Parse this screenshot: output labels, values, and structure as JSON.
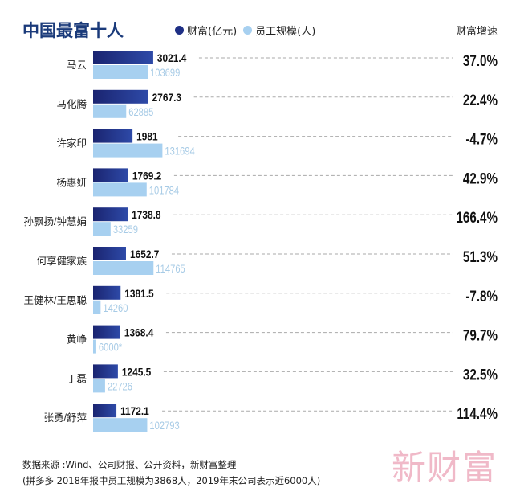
{
  "chart_data": {
    "type": "bar",
    "title": "中国最富十人",
    "legend": [
      {
        "name": "财富(亿元)",
        "color": "#1e2f85"
      },
      {
        "name": "员工规模(人)",
        "color": "#a7d0f0"
      }
    ],
    "right_header": "财富增速",
    "categories": [
      "马云",
      "马化腾",
      "许家印",
      "杨惠妍",
      "孙飘扬/钟慧娟",
      "何享健家族",
      "王健林/王思聪",
      "黄峥",
      "丁磊",
      "张勇/舒萍"
    ],
    "series": [
      {
        "name": "财富(亿元)",
        "values": [
          3021.4,
          2767.3,
          1981,
          1769.2,
          1738.8,
          1652.7,
          1381.5,
          1368.4,
          1245.5,
          1172.1
        ]
      },
      {
        "name": "员工规模(人)",
        "values": [
          103699,
          62885,
          131694,
          101784,
          33259,
          114765,
          14260,
          6000,
          22726,
          102793
        ],
        "labels": [
          "103699",
          "62885",
          "131694",
          "101784",
          "33259",
          "114765",
          "14260",
          "6000*",
          "22726",
          "102793"
        ]
      }
    ],
    "growth": [
      "37.0%",
      "22.4%",
      "-4.7%",
      "42.9%",
      "166.4%",
      "51.3%",
      "-7.8%",
      "79.7%",
      "32.5%",
      "114.4%"
    ]
  },
  "footer": {
    "source": "数据来源 :Wind、公司财报、公开资料，新财富整理",
    "note": "(拼多多 2018年报中员工规模为3868人，2019年末公司表示近6000人)",
    "watermark": "新财富"
  }
}
